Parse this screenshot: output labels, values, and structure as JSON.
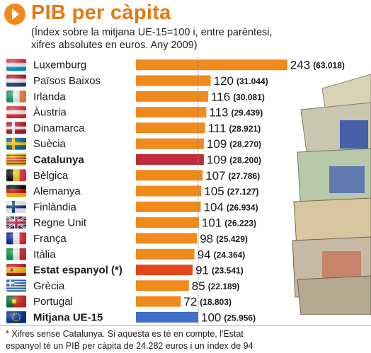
{
  "header": {
    "title": "PIB per càpita",
    "subtitle_line1": "(Índex sobre la mitjana UE-15=100 i, entre parèntesi,",
    "subtitle_line2": "xifres absolutes en euros. Any 2009)"
  },
  "footnote": {
    "line1": "* Xifres sense Catalunya. Si aquesta es té en compte, l'Estat",
    "line2": "espanyol té un PIB per càpita de 24.282 euros i un índex de 94"
  },
  "colors": {
    "accent": "#e57812",
    "bar_default": "#f08a1c",
    "bar_catalunya": "#c12a3a",
    "bar_spain": "#e0481c",
    "bar_eu": "#3f6fc8"
  },
  "chart_data": {
    "type": "bar",
    "orientation": "horizontal",
    "reference_line": 100,
    "categories": [
      "Luxemburg",
      "Països Baixos",
      "Irlanda",
      "Àustria",
      "Dinamarca",
      "Suècia",
      "Catalunya",
      "Bèlgica",
      "Alemanya",
      "Finlàndia",
      "Regne Unit",
      "França",
      "Itàlia",
      "Estat espanyol (*)",
      "Grècia",
      "Portugal",
      "Mitjana UE-15"
    ],
    "values": [
      243,
      120,
      116,
      113,
      111,
      109,
      109,
      107,
      105,
      104,
      101,
      98,
      94,
      91,
      85,
      72,
      100
    ],
    "absolute": [
      "(63.018)",
      "(31.044)",
      "(30.081)",
      "(29.439)",
      "(28.921)",
      "(28.270)",
      "(28.200)",
      "(27.786)",
      "(27.127)",
      "(26.934)",
      "(26.223)",
      "(25.429)",
      "(24.364)",
      "(23.541)",
      "(22.189)",
      "(18.803)",
      "(25.956)"
    ],
    "highlight": [
      "",
      "",
      "",
      "",
      "",
      "",
      "catalunya",
      "",
      "",
      "",
      "",
      "",
      "",
      "spain",
      "",
      "",
      "eu"
    ],
    "flags": [
      "luxembourg-flag-icon",
      "netherlands-flag-icon",
      "ireland-flag-icon",
      "austria-flag-icon",
      "denmark-flag-icon",
      "sweden-flag-icon",
      "catalonia-flag-icon",
      "belgium-flag-icon",
      "germany-flag-icon",
      "finland-flag-icon",
      "uk-flag-icon",
      "france-flag-icon",
      "italy-flag-icon",
      "spain-flag-icon",
      "greece-flag-icon",
      "portugal-flag-icon",
      "eu-flag-icon"
    ]
  }
}
